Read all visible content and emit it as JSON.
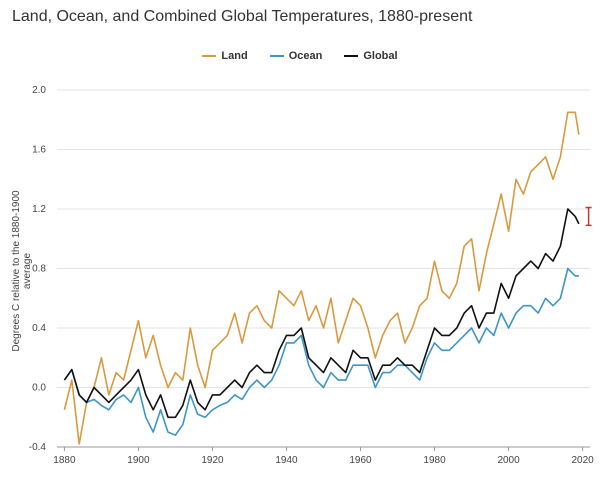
{
  "chart_data": {
    "type": "line",
    "title": "Land, Ocean, and Combined Global Temperatures, 1880-present",
    "ylabel": "Degrees C relative to the 1880-1900 average",
    "xlim": [
      1878,
      2022
    ],
    "ylim": [
      -0.4,
      2.0
    ],
    "xticks": [
      1880,
      1900,
      1920,
      1940,
      1960,
      1980,
      2000,
      2020
    ],
    "yticks": [
      -0.4,
      0.0,
      0.4,
      0.8,
      1.2,
      1.6,
      2.0
    ],
    "ytick_labels": [
      "-0.4",
      "0.0",
      "0.4",
      "0.8",
      "1.2",
      "1.6",
      "2.0"
    ],
    "grid": "horizontal",
    "legend": "top-center",
    "error_bar": {
      "x": 2020,
      "low": 1.09,
      "high": 1.21,
      "color": "#cc3333"
    },
    "series": [
      {
        "name": "Land",
        "color": "#d99a3f",
        "x": [
          1880,
          1882,
          1884,
          1886,
          1888,
          1890,
          1892,
          1894,
          1896,
          1898,
          1900,
          1902,
          1904,
          1906,
          1908,
          1910,
          1912,
          1914,
          1916,
          1918,
          1920,
          1922,
          1924,
          1926,
          1928,
          1930,
          1932,
          1934,
          1936,
          1938,
          1940,
          1942,
          1944,
          1946,
          1948,
          1950,
          1952,
          1954,
          1956,
          1958,
          1960,
          1962,
          1964,
          1966,
          1968,
          1970,
          1972,
          1974,
          1976,
          1978,
          1980,
          1982,
          1984,
          1986,
          1988,
          1990,
          1992,
          1994,
          1996,
          1998,
          2000,
          2002,
          2004,
          2006,
          2008,
          2010,
          2012,
          2014,
          2016,
          2018,
          2019
        ],
        "values": [
          -0.15,
          0.05,
          -0.38,
          -0.1,
          0.0,
          0.2,
          -0.05,
          0.1,
          0.05,
          0.25,
          0.45,
          0.2,
          0.35,
          0.15,
          0.0,
          0.1,
          0.05,
          0.4,
          0.15,
          0.0,
          0.25,
          0.3,
          0.35,
          0.5,
          0.3,
          0.5,
          0.55,
          0.45,
          0.4,
          0.65,
          0.6,
          0.55,
          0.65,
          0.45,
          0.55,
          0.4,
          0.6,
          0.3,
          0.45,
          0.6,
          0.55,
          0.4,
          0.2,
          0.35,
          0.45,
          0.5,
          0.3,
          0.4,
          0.55,
          0.6,
          0.85,
          0.65,
          0.6,
          0.7,
          0.95,
          1.0,
          0.65,
          0.9,
          1.1,
          1.3,
          1.05,
          1.4,
          1.3,
          1.45,
          1.5,
          1.55,
          1.4,
          1.55,
          1.85,
          1.85,
          1.7
        ]
      },
      {
        "name": "Ocean",
        "color": "#3d96c6",
        "x": [
          1880,
          1882,
          1884,
          1886,
          1888,
          1890,
          1892,
          1894,
          1896,
          1898,
          1900,
          1902,
          1904,
          1906,
          1908,
          1910,
          1912,
          1914,
          1916,
          1918,
          1920,
          1922,
          1924,
          1926,
          1928,
          1930,
          1932,
          1934,
          1936,
          1938,
          1940,
          1942,
          1944,
          1946,
          1948,
          1950,
          1952,
          1954,
          1956,
          1958,
          1960,
          1962,
          1964,
          1966,
          1968,
          1970,
          1972,
          1974,
          1976,
          1978,
          1980,
          1982,
          1984,
          1986,
          1988,
          1990,
          1992,
          1994,
          1996,
          1998,
          2000,
          2002,
          2004,
          2006,
          2008,
          2010,
          2012,
          2014,
          2016,
          2018,
          2019
        ],
        "values": [
          0.05,
          0.12,
          -0.05,
          -0.1,
          -0.08,
          -0.12,
          -0.15,
          -0.08,
          -0.05,
          -0.1,
          0.0,
          -0.2,
          -0.3,
          -0.15,
          -0.3,
          -0.32,
          -0.25,
          -0.05,
          -0.18,
          -0.2,
          -0.15,
          -0.12,
          -0.1,
          -0.05,
          -0.08,
          0.0,
          0.05,
          0.0,
          0.05,
          0.15,
          0.3,
          0.3,
          0.35,
          0.15,
          0.05,
          0.0,
          0.1,
          0.05,
          0.05,
          0.15,
          0.15,
          0.15,
          0.0,
          0.1,
          0.1,
          0.15,
          0.15,
          0.1,
          0.05,
          0.2,
          0.3,
          0.25,
          0.25,
          0.3,
          0.35,
          0.4,
          0.3,
          0.4,
          0.35,
          0.5,
          0.4,
          0.5,
          0.55,
          0.55,
          0.5,
          0.6,
          0.55,
          0.6,
          0.8,
          0.75,
          0.75
        ]
      },
      {
        "name": "Global",
        "color": "#111111",
        "x": [
          1880,
          1882,
          1884,
          1886,
          1888,
          1890,
          1892,
          1894,
          1896,
          1898,
          1900,
          1902,
          1904,
          1906,
          1908,
          1910,
          1912,
          1914,
          1916,
          1918,
          1920,
          1922,
          1924,
          1926,
          1928,
          1930,
          1932,
          1934,
          1936,
          1938,
          1940,
          1942,
          1944,
          1946,
          1948,
          1950,
          1952,
          1954,
          1956,
          1958,
          1960,
          1962,
          1964,
          1966,
          1968,
          1970,
          1972,
          1974,
          1976,
          1978,
          1980,
          1982,
          1984,
          1986,
          1988,
          1990,
          1992,
          1994,
          1996,
          1998,
          2000,
          2002,
          2004,
          2006,
          2008,
          2010,
          2012,
          2014,
          2016,
          2018,
          2019
        ],
        "values": [
          0.05,
          0.12,
          -0.05,
          -0.1,
          0.0,
          -0.05,
          -0.1,
          -0.05,
          0.0,
          0.05,
          0.12,
          -0.05,
          -0.15,
          -0.05,
          -0.2,
          -0.2,
          -0.12,
          0.05,
          -0.1,
          -0.15,
          -0.05,
          -0.05,
          0.0,
          0.05,
          0.0,
          0.1,
          0.15,
          0.1,
          0.1,
          0.25,
          0.35,
          0.35,
          0.4,
          0.2,
          0.15,
          0.1,
          0.2,
          0.15,
          0.1,
          0.25,
          0.2,
          0.2,
          0.05,
          0.15,
          0.15,
          0.2,
          0.15,
          0.15,
          0.1,
          0.25,
          0.4,
          0.35,
          0.35,
          0.4,
          0.5,
          0.55,
          0.4,
          0.5,
          0.5,
          0.7,
          0.6,
          0.75,
          0.8,
          0.85,
          0.8,
          0.9,
          0.85,
          0.95,
          1.2,
          1.15,
          1.1
        ]
      }
    ]
  }
}
